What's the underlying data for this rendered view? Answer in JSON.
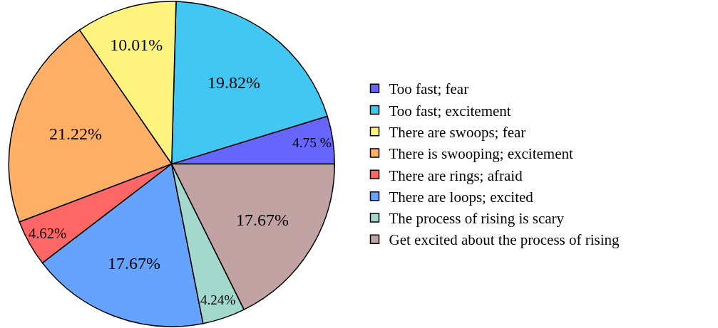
{
  "chart_data": {
    "type": "pie",
    "categories": [
      "Too fast; fear",
      "Too fast; excitement",
      "There are swoops; fear",
      "There is swooping; excitement",
      "There are rings; afraid",
      "There are loops; excited",
      "The process of rising is scary",
      "Get excited about the process of rising"
    ],
    "values": [
      4.75,
      19.82,
      10.01,
      21.22,
      4.62,
      17.67,
      4.24,
      17.67
    ],
    "value_labels": [
      "4.75 %",
      "19.82%",
      "10.01%",
      "21.22%",
      "4.62%",
      "17.67%",
      "4.24%",
      "17.67%"
    ],
    "colors": [
      "#6666ff",
      "#42c6f2",
      "#fff380",
      "#ffb066",
      "#ff6666",
      "#66a3ff",
      "#a3d9cc",
      "#c2a3a3"
    ],
    "legend": "right"
  }
}
